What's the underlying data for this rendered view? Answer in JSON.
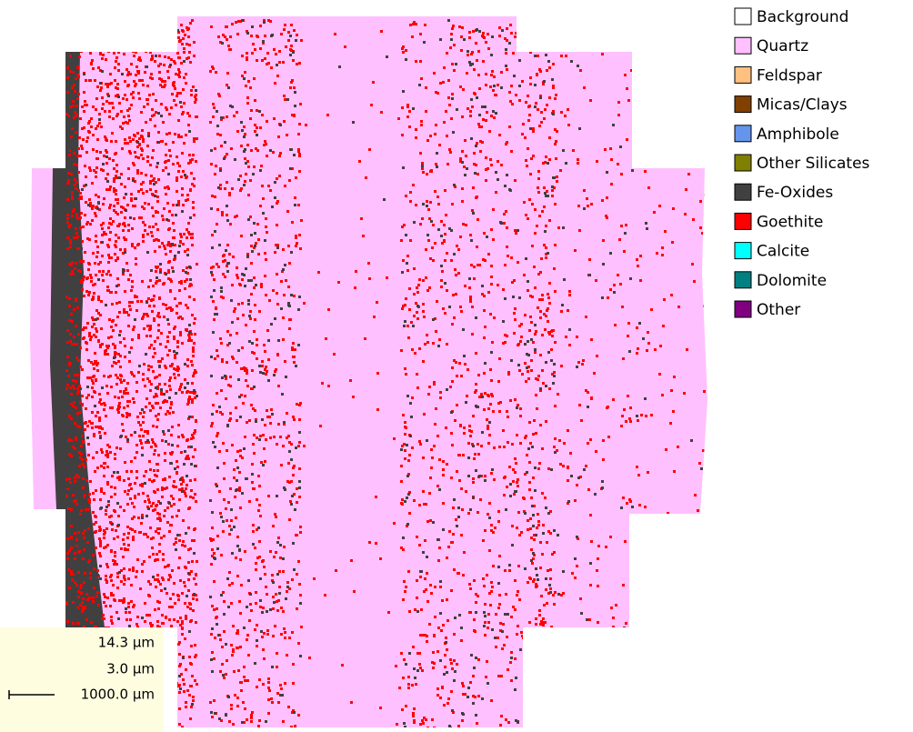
{
  "legend": {
    "items": [
      {
        "label": "Background",
        "color": "#ffffff"
      },
      {
        "label": "Quartz",
        "color": "#ffc0ff"
      },
      {
        "label": "Feldspar",
        "color": "#ffc080"
      },
      {
        "label": "Micas/Clays",
        "color": "#804000"
      },
      {
        "label": "Amphibole",
        "color": "#6495ed"
      },
      {
        "label": "Other Silicates",
        "color": "#808000"
      },
      {
        "label": "Fe-Oxides",
        "color": "#404040"
      },
      {
        "label": "Goethite",
        "color": "#ff0000"
      },
      {
        "label": "Calcite",
        "color": "#00ffff"
      },
      {
        "label": "Dolomite",
        "color": "#008080"
      },
      {
        "label": "Other",
        "color": "#800080"
      }
    ]
  },
  "scale": {
    "pixel_size": "14.3 µm",
    "step_size": "3.0 µm",
    "bar_length": "1000.0 µm"
  }
}
